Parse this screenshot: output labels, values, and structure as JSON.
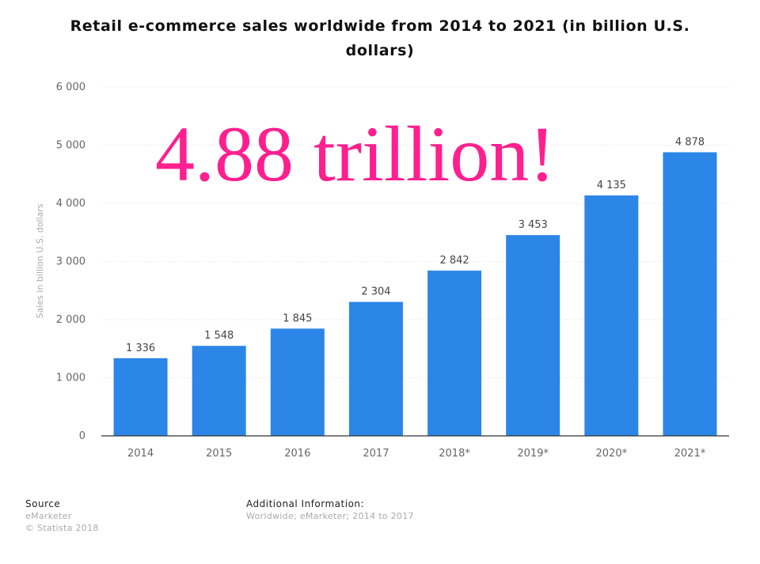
{
  "chart_data": {
    "type": "bar",
    "title": "Retail e-commerce sales worldwide from 2014 to 2021 (in billion U.S. dollars)",
    "ylabel": "Sales in billion U.S. dollars",
    "xlabel": "",
    "categories": [
      "2014",
      "2015",
      "2016",
      "2017",
      "2018*",
      "2019*",
      "2020*",
      "2021*"
    ],
    "values": [
      1336,
      1548,
      1845,
      2304,
      2842,
      3453,
      4135,
      4878
    ],
    "value_labels": [
      "1 336",
      "1 548",
      "1 845",
      "2 304",
      "2 842",
      "3 453",
      "4 135",
      "4 878"
    ],
    "ylim": [
      0,
      6000
    ],
    "yticks": [
      0,
      1000,
      2000,
      3000,
      4000,
      5000,
      6000
    ],
    "ytick_labels": [
      "0",
      "1 000",
      "2 000",
      "3 000",
      "4 000",
      "5 000",
      "6 000"
    ],
    "bar_color": "#2b86e8",
    "grid": true
  },
  "overlay_text": "4.88 trillion!",
  "overlay_color": "#ff1f8e",
  "footer": {
    "source_heading": "Source",
    "source_line1": "eMarketer",
    "source_line2": "© Statista 2018",
    "info_heading": "Additional Information:",
    "info_line1": "Worldwide; eMarketer; 2014 to 2017"
  }
}
